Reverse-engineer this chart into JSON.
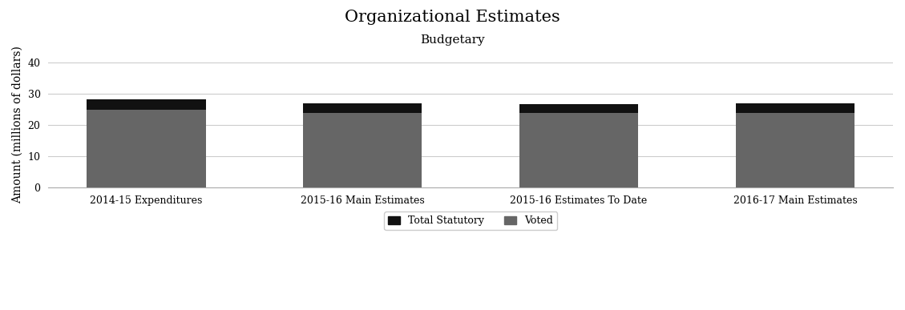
{
  "title": "Organizational Estimates",
  "subtitle": "Budgetary",
  "categories": [
    "2014-15 Expenditures",
    "2015-16 Main Estimates",
    "2015-16 Estimates To Date",
    "2016-17 Main Estimates"
  ],
  "voted_values": [
    24.8,
    23.9,
    23.8,
    23.8
  ],
  "statutory_values": [
    3.5,
    3.0,
    3.0,
    3.1
  ],
  "voted_color": "#666666",
  "statutory_color": "#111111",
  "background_color": "#ffffff",
  "ylim": [
    0,
    40
  ],
  "yticks": [
    0,
    10,
    20,
    30,
    40
  ],
  "ylabel": "Amount (millions of dollars)",
  "legend_labels": [
    "Total Statutory",
    "Voted"
  ],
  "title_fontsize": 15,
  "subtitle_fontsize": 11,
  "ylabel_fontsize": 10,
  "tick_fontsize": 9,
  "bar_width": 0.55
}
